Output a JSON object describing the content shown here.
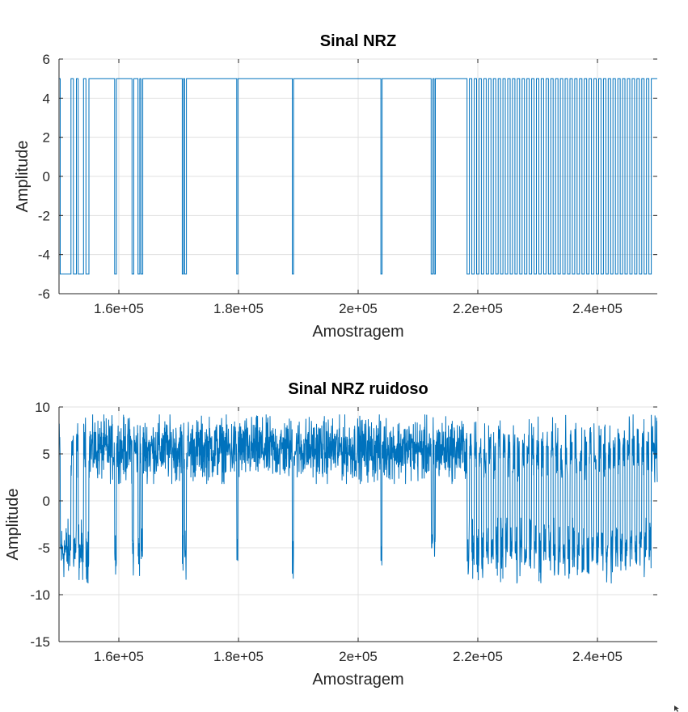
{
  "colors": {
    "series": "#0072bd",
    "grid": "#e0e0e0",
    "axis": "#262626",
    "background": "#ffffff"
  },
  "chart_data": [
    {
      "type": "line",
      "title": "Sinal NRZ",
      "xlabel": "Amostragem",
      "ylabel": "Amplitude",
      "xlim": [
        150000,
        250000
      ],
      "ylim": [
        -6,
        6
      ],
      "xticks": [
        160000,
        180000,
        200000,
        220000,
        240000
      ],
      "xtick_labels": [
        "1.6e+05",
        "1.8e+05",
        "2e+05",
        "2.2e+05",
        "2.4e+05"
      ],
      "yticks": [
        -6,
        -4,
        -2,
        0,
        2,
        4,
        6
      ],
      "ytick_labels": [
        "-6",
        "-4",
        "-2",
        "0",
        "2",
        "4",
        "6"
      ],
      "grid": true,
      "series": [
        {
          "levels": [
            5,
            -5
          ],
          "segments": [
            [
              150000,
              5
            ],
            [
              150200,
              -5
            ],
            [
              152000,
              5
            ],
            [
              152400,
              -5
            ],
            [
              152900,
              5
            ],
            [
              153200,
              -5
            ],
            [
              154100,
              5
            ],
            [
              154500,
              -5
            ],
            [
              155000,
              5
            ],
            [
              159300,
              -5
            ],
            [
              159600,
              5
            ],
            [
              162200,
              -5
            ],
            [
              162500,
              5
            ],
            [
              163200,
              -5
            ],
            [
              163500,
              5
            ],
            [
              163700,
              -5
            ],
            [
              164000,
              5
            ],
            [
              170600,
              -5
            ],
            [
              170800,
              5
            ],
            [
              171000,
              -5
            ],
            [
              171300,
              5
            ],
            [
              179700,
              -5
            ],
            [
              179900,
              5
            ],
            [
              189000,
              -5
            ],
            [
              189200,
              5
            ],
            [
              203800,
              -5
            ],
            [
              204000,
              5
            ],
            [
              212200,
              -5
            ],
            [
              212500,
              5
            ],
            [
              212700,
              -5
            ],
            [
              212900,
              5
            ],
            [
              218200,
              -5
            ],
            [
              218600,
              5
            ],
            [
              219000,
              -5
            ],
            [
              219400,
              5
            ],
            [
              219800,
              -5
            ],
            [
              220200,
              5
            ],
            [
              220600,
              -5
            ],
            [
              221000,
              5
            ],
            [
              221400,
              -5
            ],
            [
              221800,
              5
            ],
            [
              222200,
              -5
            ],
            [
              222600,
              5
            ],
            [
              223000,
              -5
            ],
            [
              223400,
              5
            ],
            [
              223800,
              -5
            ],
            [
              224200,
              5
            ],
            [
              224600,
              -5
            ],
            [
              225000,
              5
            ],
            [
              225400,
              -5
            ],
            [
              225800,
              5
            ],
            [
              226200,
              -5
            ],
            [
              226600,
              5
            ],
            [
              227000,
              -5
            ],
            [
              227400,
              5
            ],
            [
              227800,
              -5
            ],
            [
              228200,
              5
            ],
            [
              228600,
              -5
            ],
            [
              229000,
              5
            ],
            [
              229400,
              -5
            ],
            [
              229800,
              5
            ],
            [
              230200,
              -5
            ],
            [
              230600,
              5
            ],
            [
              231000,
              -5
            ],
            [
              231400,
              5
            ],
            [
              231800,
              -5
            ],
            [
              232200,
              5
            ],
            [
              232600,
              -5
            ],
            [
              233000,
              5
            ],
            [
              233400,
              -5
            ],
            [
              233800,
              5
            ],
            [
              234200,
              -5
            ],
            [
              234600,
              5
            ],
            [
              235000,
              -5
            ],
            [
              235400,
              5
            ],
            [
              235800,
              -5
            ],
            [
              236200,
              5
            ],
            [
              236600,
              -5
            ],
            [
              237000,
              5
            ],
            [
              237400,
              -5
            ],
            [
              237800,
              5
            ],
            [
              238200,
              -5
            ],
            [
              238600,
              5
            ],
            [
              239000,
              -5
            ],
            [
              239400,
              5
            ],
            [
              239800,
              -5
            ],
            [
              240200,
              5
            ],
            [
              240600,
              -5
            ],
            [
              241000,
              5
            ],
            [
              241400,
              -5
            ],
            [
              241800,
              5
            ],
            [
              242200,
              -5
            ],
            [
              242600,
              5
            ],
            [
              243000,
              -5
            ],
            [
              243400,
              5
            ],
            [
              243800,
              -5
            ],
            [
              244200,
              5
            ],
            [
              244600,
              -5
            ],
            [
              245000,
              5
            ],
            [
              245400,
              -5
            ],
            [
              245800,
              5
            ],
            [
              246200,
              -5
            ],
            [
              246600,
              5
            ],
            [
              247000,
              -5
            ],
            [
              247400,
              5
            ],
            [
              247800,
              -5
            ],
            [
              248200,
              5
            ],
            [
              248600,
              -5
            ],
            [
              249000,
              5
            ],
            [
              250000,
              5
            ]
          ]
        }
      ]
    },
    {
      "type": "line",
      "title": "Sinal NRZ ruidoso",
      "xlabel": "Amostragem",
      "ylabel": "Amplitude",
      "xlim": [
        150000,
        250000
      ],
      "ylim": [
        -15,
        10
      ],
      "xticks": [
        160000,
        180000,
        200000,
        220000,
        240000
      ],
      "xtick_labels": [
        "1.6e+05",
        "1.8e+05",
        "2e+05",
        "2.2e+05",
        "2.4e+05"
      ],
      "yticks": [
        -15,
        -10,
        -5,
        0,
        5,
        10
      ],
      "ytick_labels": [
        "-15",
        "-10",
        "-5",
        "0",
        "5",
        "10"
      ],
      "grid": true,
      "series": [
        {
          "noise_band_high": [
            1.8,
            9.2
          ],
          "noise_band_low": [
            -8.8,
            -1.8
          ]
        }
      ]
    }
  ]
}
